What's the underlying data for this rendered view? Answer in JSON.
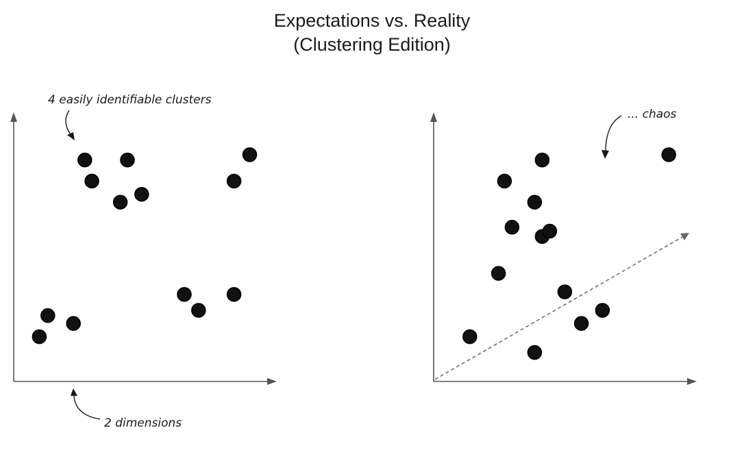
{
  "title": {
    "line1": "Expectations vs. Reality",
    "line2": "(Clustering Edition)"
  },
  "colors": {
    "point_fill": "#111111",
    "axis": "#555555",
    "text": "#1a1a1a"
  },
  "panels": [
    {
      "id": "expectations",
      "annotations": [
        {
          "id": "clusters-note",
          "text": "4 easily identifiable clusters"
        },
        {
          "id": "dimensions-note",
          "text": "2 dimensions"
        }
      ],
      "points": [
        {
          "x": 2.5,
          "y": 8.4
        },
        {
          "x": 2.75,
          "y": 7.6
        },
        {
          "x": 4.0,
          "y": 8.4
        },
        {
          "x": 3.75,
          "y": 6.8
        },
        {
          "x": 4.5,
          "y": 7.1
        },
        {
          "x": 8.3,
          "y": 8.6
        },
        {
          "x": 7.75,
          "y": 7.6
        },
        {
          "x": 1.2,
          "y": 2.5
        },
        {
          "x": 0.9,
          "y": 1.7
        },
        {
          "x": 2.1,
          "y": 2.2
        },
        {
          "x": 6.0,
          "y": 3.3
        },
        {
          "x": 6.5,
          "y": 2.7
        },
        {
          "x": 7.75,
          "y": 3.3
        }
      ]
    },
    {
      "id": "reality",
      "annotations": [
        {
          "id": "chaos-note",
          "text": "... chaos"
        }
      ],
      "trend_arrow": true,
      "points": [
        {
          "x": 3.6,
          "y": 8.4
        },
        {
          "x": 2.35,
          "y": 7.6
        },
        {
          "x": 3.35,
          "y": 6.8
        },
        {
          "x": 2.6,
          "y": 5.85
        },
        {
          "x": 3.6,
          "y": 5.5
        },
        {
          "x": 3.85,
          "y": 5.7
        },
        {
          "x": 2.15,
          "y": 4.1
        },
        {
          "x": 4.35,
          "y": 3.4
        },
        {
          "x": 4.9,
          "y": 2.2
        },
        {
          "x": 5.6,
          "y": 2.7
        },
        {
          "x": 1.2,
          "y": 1.7
        },
        {
          "x": 3.35,
          "y": 1.1
        },
        {
          "x": 7.8,
          "y": 8.6
        }
      ]
    }
  ]
}
